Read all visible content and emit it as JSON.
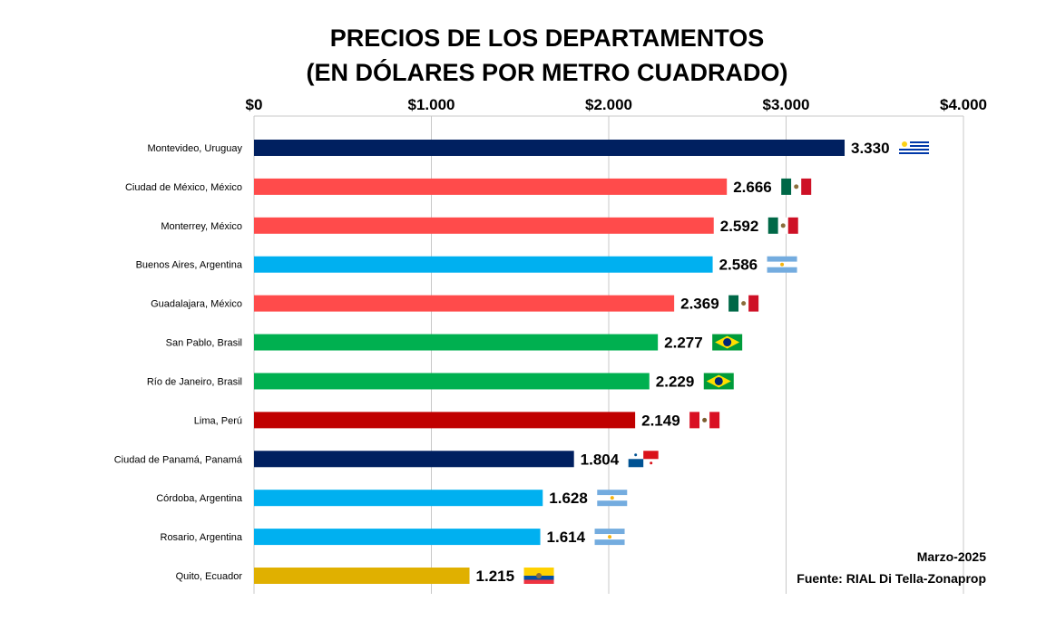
{
  "chart_data": {
    "type": "bar",
    "orientation": "horizontal",
    "title": [
      "PRECIOS DE LOS DEPARTAMENTOS",
      "(EN DÓLARES POR METRO CUADRADO)"
    ],
    "xlim": [
      0,
      4000
    ],
    "x_ticks": [
      0,
      1000,
      2000,
      3000,
      4000
    ],
    "x_tick_labels": [
      "$0",
      "$1.000",
      "$2.000",
      "$3.000",
      "$4.000"
    ],
    "x_axis_position": "top",
    "grid": true,
    "categories": [
      "Montevideo, Uruguay",
      "Ciudad de México, México",
      "Monterrey, México",
      "Buenos Aires, Argentina",
      "Guadalajara, México",
      "San Pablo, Brasil",
      "Río de Janeiro, Brasil",
      "Lima, Perú",
      "Ciudad de Panamá, Panamá",
      "Córdoba, Argentina",
      "Rosario, Argentina",
      "Quito, Ecuador"
    ],
    "values": [
      3330,
      2666,
      2592,
      2586,
      2369,
      2277,
      2229,
      2149,
      1804,
      1628,
      1614,
      1215
    ],
    "data_labels": [
      "3.330",
      "2.666",
      "2.592",
      "2.586",
      "2.369",
      "2.277",
      "2.229",
      "2.149",
      "1.804",
      "1.628",
      "1.614",
      "1.215"
    ],
    "bar_colors": [
      "#002060",
      "#FF4B4B",
      "#FF4B4B",
      "#00B0F0",
      "#FF4B4B",
      "#00B050",
      "#00B050",
      "#C00000",
      "#002060",
      "#00B0F0",
      "#00B0F0",
      "#E0B000"
    ],
    "flags": [
      "uruguay-flag",
      "mexico-flag",
      "mexico-flag",
      "argentina-flag",
      "mexico-flag",
      "brazil-flag",
      "brazil-flag",
      "peru-flag",
      "panama-flag",
      "argentina-flag",
      "argentina-flag",
      "ecuador-flag"
    ],
    "annotations": [
      "Marzo-2025",
      "Fuente: RIAL Di Tella-Zonaprop"
    ]
  }
}
